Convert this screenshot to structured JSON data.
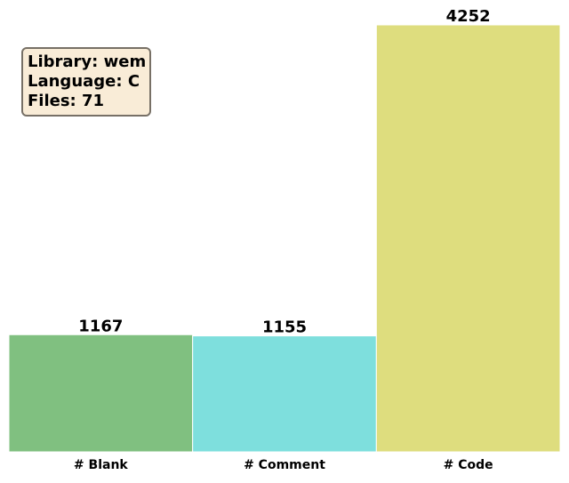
{
  "info_box": {
    "library": "Library: wem",
    "language": "Language: C",
    "files": "Files: 71"
  },
  "chart_data": {
    "type": "bar",
    "categories": [
      "# Blank",
      "# Comment",
      "# Code"
    ],
    "values": [
      1167,
      1155,
      4252
    ],
    "colors": [
      "#80c080",
      "#7edfdd",
      "#dedd7e"
    ],
    "ylim": [
      0,
      4252
    ],
    "grid": false,
    "data_labels": true
  }
}
